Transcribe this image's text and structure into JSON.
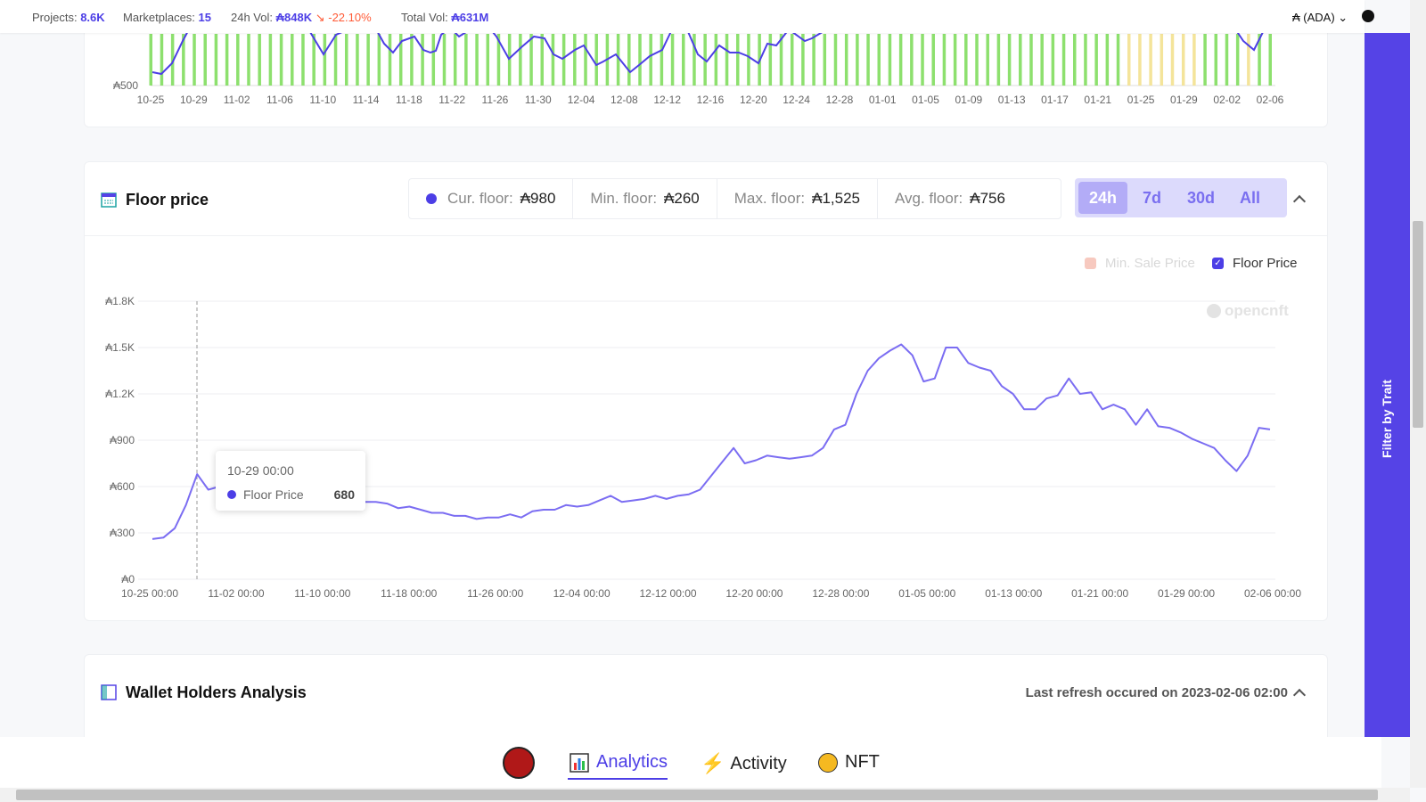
{
  "topbar": {
    "projects_label": "Projects:",
    "projects_value": "8.6K",
    "marketplaces_label": "Marketplaces:",
    "marketplaces_value": "15",
    "vol24_label": "24h Vol:",
    "vol24_value": "₳848K",
    "vol24_change": "-22.10%",
    "total_label": "Total Vol:",
    "total_value": "₳631M",
    "currency": "₳ (ADA)"
  },
  "volume_chart": {
    "y_tick": "₳500",
    "x_ticks": [
      "10-25",
      "10-29",
      "11-02",
      "11-06",
      "11-10",
      "11-14",
      "11-18",
      "11-22",
      "11-26",
      "11-30",
      "12-04",
      "12-08",
      "12-12",
      "12-16",
      "12-20",
      "12-24",
      "12-28",
      "01-01",
      "01-05",
      "01-09",
      "01-13",
      "01-17",
      "01-21",
      "01-25",
      "01-29",
      "02-02",
      "02-06"
    ]
  },
  "floor": {
    "title": "Floor price",
    "cur_label": "Cur. floor:",
    "cur_value": "₳980",
    "min_label": "Min. floor:",
    "min_value": "₳260",
    "max_label": "Max. floor:",
    "max_value": "₳1,525",
    "avg_label": "Avg. floor:",
    "avg_value": "₳756",
    "tabs": [
      "24h",
      "7d",
      "30d",
      "All"
    ],
    "legend_min": "Min. Sale Price",
    "legend_floor": "Floor Price",
    "watermark": "opencnft",
    "tooltip": {
      "date": "10-29 00:00",
      "series": "Floor Price",
      "value": "680"
    }
  },
  "chart_data": {
    "type": "line",
    "ylim": [
      0,
      1800
    ],
    "y_ticks": [
      0,
      300,
      600,
      900,
      1200,
      1500,
      1800
    ],
    "y_tick_labels": [
      "₳0",
      "₳300",
      "₳600",
      "₳900",
      "₳1.2K",
      "₳1.5K",
      "₳1.8K"
    ],
    "x_tick_labels": [
      "10-25 00:00",
      "11-02 00:00",
      "11-10 00:00",
      "11-18 00:00",
      "11-26 00:00",
      "12-04 00:00",
      "12-12 00:00",
      "12-20 00:00",
      "12-28 00:00",
      "01-05 00:00",
      "01-13 00:00",
      "01-21 00:00",
      "01-29 00:00",
      "02-06 00:00"
    ],
    "legend": "top-right",
    "series": [
      {
        "name": "Floor Price",
        "color": "#7b6df2",
        "values": [
          260,
          270,
          330,
          480,
          680,
          580,
          600,
          560,
          540,
          520,
          520,
          510,
          500,
          460,
          540,
          460,
          460,
          480,
          480,
          500,
          500,
          490,
          460,
          470,
          450,
          430,
          430,
          410,
          410,
          390,
          400,
          400,
          420,
          400,
          440,
          450,
          450,
          480,
          470,
          480,
          510,
          540,
          500,
          510,
          520,
          540,
          520,
          540,
          550,
          580,
          670,
          760,
          850,
          750,
          770,
          800,
          790,
          780,
          790,
          800,
          850,
          970,
          1000,
          1200,
          1350,
          1430,
          1480,
          1520,
          1450,
          1280,
          1300,
          1500,
          1500,
          1400,
          1370,
          1350,
          1250,
          1200,
          1100,
          1100,
          1170,
          1190,
          1300,
          1200,
          1210,
          1100,
          1130,
          1100,
          1000,
          1100,
          990,
          980,
          950,
          910,
          880,
          850,
          770,
          700,
          800,
          980,
          970
        ]
      }
    ]
  },
  "wallet": {
    "title": "Wallet Holders Analysis",
    "refresh_prefix": "Last refresh occured on ",
    "refresh_time": "2023-02-06 02:00"
  },
  "sidebar": {
    "label": "Filter by Trait"
  },
  "bottom_nav": {
    "analytics": "Analytics",
    "activity": "Activity",
    "nft": "NFT"
  }
}
